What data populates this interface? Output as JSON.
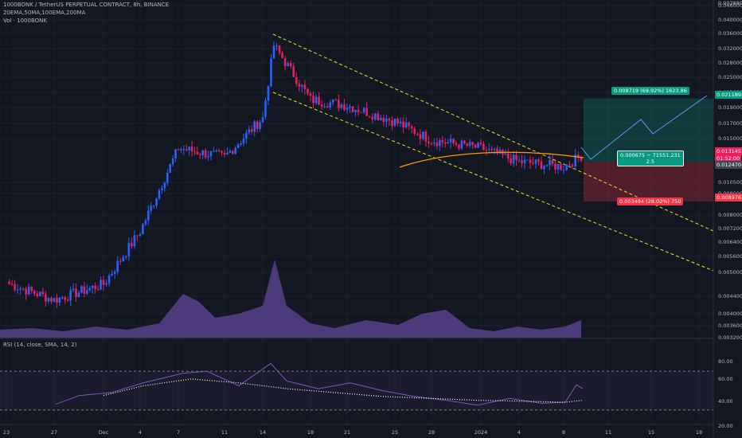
{
  "legend": {
    "symbol_line": "1000BONK / TetherUS PERPETUAL CONTRACT, 8h, BINANCE",
    "ema_line": "20EMA,50MA,100EMA,200MA",
    "vol_line": "Vol · 1000BONK"
  },
  "rsi_legend": "RSI (14, close, SMA, 14, 2)",
  "price_axis": {
    "labels": [
      "0.046000",
      "0.040000",
      "0.036000",
      "0.032000",
      "0.028000",
      "0.025000",
      "0.022000",
      "0.019000",
      "0.017000",
      "0.015000",
      "0.010500",
      "0.009000",
      "0.008000",
      "0.007200",
      "0.006400",
      "0.005600",
      "0.005000",
      "0.004400",
      "0.004000",
      "0.003600",
      "0.003200",
      "0.002880"
    ],
    "current_price": "0.013145",
    "countdown": "01:52:00",
    "target_price": "0.021189",
    "entry_price": "0.012470",
    "stop_price": "0.008976"
  },
  "rsi_axis": {
    "labels": [
      "80.00",
      "60.00",
      "40.00",
      "20.00"
    ]
  },
  "time_axis": {
    "labels": [
      "23",
      "27",
      "Dec",
      "4",
      "7",
      "11",
      "14",
      "18",
      "21",
      "25",
      "28",
      "2024",
      "4",
      "8",
      "11",
      "15",
      "18"
    ]
  },
  "position_tool": {
    "target_label": "0.008719 (69.92%) 1623.86",
    "middle_label_line1": "0.000675 − 71551.231",
    "middle_label_line2": "2.5",
    "stop_label": "0.003494 (28.02%) 750"
  },
  "colors": {
    "background": "#131722",
    "up_candle": "#2962ff",
    "down_candle": "#e91e63",
    "channel": "#e6e61e",
    "ema": "#ff9800",
    "rsi_line": "#7e57c2",
    "target_green": "#089981",
    "stop_red": "#f23645"
  },
  "chart_data": {
    "type": "candlestick",
    "symbol": "1000BONK / TetherUS PERPETUAL CONTRACT",
    "interval": "8h",
    "exchange": "BINANCE",
    "close_path": [
      [
        "23",
        0.00455
      ],
      [
        "27",
        0.00395
      ],
      [
        "Dec",
        0.0045
      ],
      [
        "4",
        0.007
      ],
      [
        "7",
        0.014
      ],
      [
        "11",
        0.013
      ],
      [
        "14",
        0.018
      ],
      [
        "14",
        0.033
      ],
      [
        "18",
        0.021
      ],
      [
        "21",
        0.02
      ],
      [
        "25",
        0.0175
      ],
      [
        "28",
        0.015
      ],
      [
        "2024",
        0.014
      ],
      [
        "4",
        0.0125
      ],
      [
        "8",
        0.012
      ],
      [
        "8",
        0.01314
      ]
    ],
    "rsi_range": [
      20,
      80
    ],
    "position": {
      "entry": 0.01247,
      "target": 0.021189,
      "stop": 0.008976,
      "current": 0.013145
    }
  }
}
